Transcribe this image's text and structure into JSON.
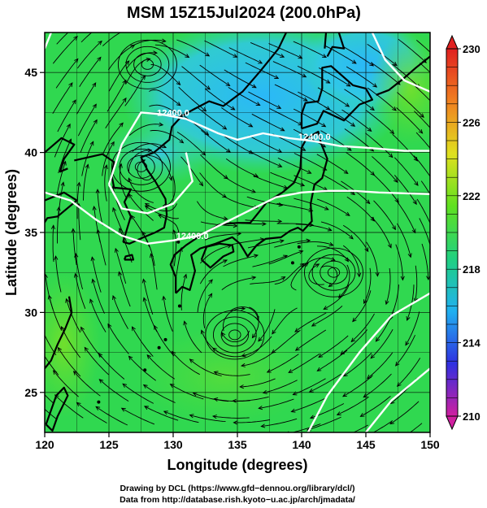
{
  "chart_data": {
    "type": "heatmap",
    "title": "MSM 15Z15Jul2024 (200.0hPa)",
    "xlabel": "Longitude (degrees)",
    "ylabel": "Latitude  (degrees)",
    "xlim": [
      120,
      150
    ],
    "ylim": [
      22.5,
      47.5
    ],
    "x_ticks": [
      "120",
      "125",
      "130",
      "135",
      "140",
      "145",
      "150"
    ],
    "y_ticks": [
      "25",
      "30",
      "35",
      "40",
      "45"
    ],
    "colorbar": {
      "range": [
        210,
        230
      ],
      "ticks": [
        "210",
        "214",
        "218",
        "222",
        "226",
        "230"
      ],
      "colors": [
        "#d020a0",
        "#3030e0",
        "#20b0f0",
        "#20d080",
        "#60e020",
        "#e0e020",
        "#f08020",
        "#e02020"
      ]
    },
    "contours": [
      {
        "label": "12400.0",
        "level": 12400,
        "lon": 130,
        "lat": 42.3
      },
      {
        "label": "12400.0",
        "level": 12400,
        "lon": 141,
        "lat": 40.8
      },
      {
        "label": "12400.0",
        "level": 12400,
        "lon": 131.5,
        "lat": 34.6
      }
    ],
    "vortices": [
      {
        "lon": 128,
        "lat": 45.5
      },
      {
        "lon": 127.5,
        "lat": 39.1
      },
      {
        "lon": 134.8,
        "lat": 28.6
      },
      {
        "lon": 142.5,
        "lat": 32.5
      }
    ],
    "field_colors": {
      "cold": "#20c0f0",
      "cool": "#30e0a0",
      "mid": "#30d850",
      "warm": "#60e020"
    }
  },
  "credits": {
    "line1": "Drawing by DCL (https://www.gfd−dennou.org/library/dcl/)",
    "line2": "Data from http://database.rish.kyoto−u.ac.jp/arch/jmadata/"
  }
}
